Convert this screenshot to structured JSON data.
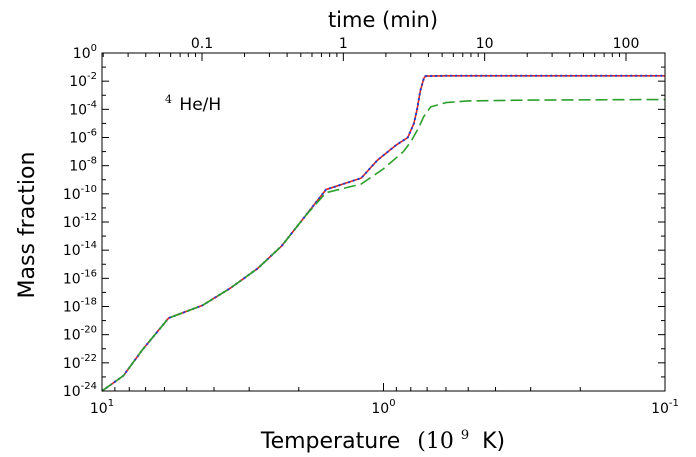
{
  "chart_data": {
    "type": "line",
    "annotation": {
      "iso": "4",
      "label": "He/H"
    },
    "x_axis_bottom": {
      "label_text": "Temperature",
      "label_unit_prefix": "(10",
      "label_unit_exp": "9",
      "label_unit_suffix": "K)",
      "scale": "log",
      "reversed": true,
      "range": [
        10,
        0.1
      ],
      "ticks": [
        {
          "value": 10,
          "base": "10",
          "exp": "1"
        },
        {
          "value": 1,
          "base": "10",
          "exp": "0"
        },
        {
          "value": 0.1,
          "base": "10",
          "exp": "-1"
        }
      ]
    },
    "x_axis_top": {
      "label": "time (min)",
      "scale": "log",
      "ticks": [
        {
          "value": 0.1,
          "label": "0.1"
        },
        {
          "value": 1,
          "label": "1"
        },
        {
          "value": 10,
          "label": "10"
        },
        {
          "value": 100,
          "label": "100"
        }
      ]
    },
    "y_axis": {
      "label": "Mass fraction",
      "scale": "log",
      "range": [
        1e-24,
        1
      ],
      "ticks": [
        {
          "exp": "0"
        },
        {
          "exp": "-2"
        },
        {
          "exp": "-4"
        },
        {
          "exp": "-6"
        },
        {
          "exp": "-8"
        },
        {
          "exp": "-10"
        },
        {
          "exp": "-12"
        },
        {
          "exp": "-14"
        },
        {
          "exp": "-16"
        },
        {
          "exp": "-18"
        },
        {
          "exp": "-20"
        },
        {
          "exp": "-22"
        },
        {
          "exp": "-24"
        }
      ]
    },
    "grid": false,
    "series": [
      {
        "color": "#d62728",
        "style": "solid",
        "points": [
          [
            10,
            1e-24
          ],
          [
            8.4,
            1.2e-23
          ],
          [
            7.2,
            8e-22
          ],
          [
            5.8,
            1.5e-19
          ],
          [
            4.4,
            1.2e-18
          ],
          [
            3.5,
            2e-17
          ],
          [
            2.8,
            5e-16
          ],
          [
            2.3,
            2e-14
          ],
          [
            1.9,
            2.5e-12
          ],
          [
            1.6,
            2e-10
          ],
          [
            1.2,
            1.3e-09
          ],
          [
            1.05,
            2.5e-08
          ],
          [
            0.9,
            3e-07
          ],
          [
            0.82,
            1e-06
          ],
          [
            0.78,
            1e-05
          ],
          [
            0.76,
            0.0001
          ],
          [
            0.74,
            0.002
          ],
          [
            0.72,
            0.015
          ],
          [
            0.71,
            0.023
          ],
          [
            0.6,
            0.024
          ],
          [
            0.1,
            0.024
          ]
        ]
      },
      {
        "color": "#1f3fd6",
        "style": "dotted",
        "points": [
          [
            10,
            1e-24
          ],
          [
            8.4,
            1.2e-23
          ],
          [
            7.2,
            8e-22
          ],
          [
            5.8,
            1.5e-19
          ],
          [
            4.4,
            1.2e-18
          ],
          [
            3.5,
            2e-17
          ],
          [
            2.8,
            5e-16
          ],
          [
            2.3,
            2e-14
          ],
          [
            1.9,
            2.5e-12
          ],
          [
            1.6,
            2e-10
          ],
          [
            1.2,
            1.3e-09
          ],
          [
            1.05,
            2.5e-08
          ],
          [
            0.9,
            3e-07
          ],
          [
            0.82,
            1e-06
          ],
          [
            0.78,
            1e-05
          ],
          [
            0.76,
            0.0001
          ],
          [
            0.74,
            0.002
          ],
          [
            0.72,
            0.015
          ],
          [
            0.71,
            0.023
          ],
          [
            0.6,
            0.024
          ],
          [
            0.1,
            0.024
          ]
        ]
      },
      {
        "color": "#2ca02c",
        "style": "dashed",
        "points": [
          [
            10,
            1e-24
          ],
          [
            8.4,
            1.2e-23
          ],
          [
            7.2,
            8e-22
          ],
          [
            5.8,
            1.5e-19
          ],
          [
            4.4,
            1.2e-18
          ],
          [
            3.5,
            2e-17
          ],
          [
            2.8,
            5e-16
          ],
          [
            2.3,
            2e-14
          ],
          [
            1.9,
            2.5e-12
          ],
          [
            1.6,
            1.2e-10
          ],
          [
            1.2,
            5e-10
          ],
          [
            1.0,
            6e-09
          ],
          [
            0.85,
            1e-07
          ],
          [
            0.8,
            5e-07
          ],
          [
            0.75,
            5e-06
          ],
          [
            0.72,
            3e-05
          ],
          [
            0.68,
            0.00015
          ],
          [
            0.6,
            0.0003
          ],
          [
            0.5,
            0.0004
          ],
          [
            0.3,
            0.00045
          ],
          [
            0.1,
            0.0005
          ]
        ]
      }
    ]
  }
}
